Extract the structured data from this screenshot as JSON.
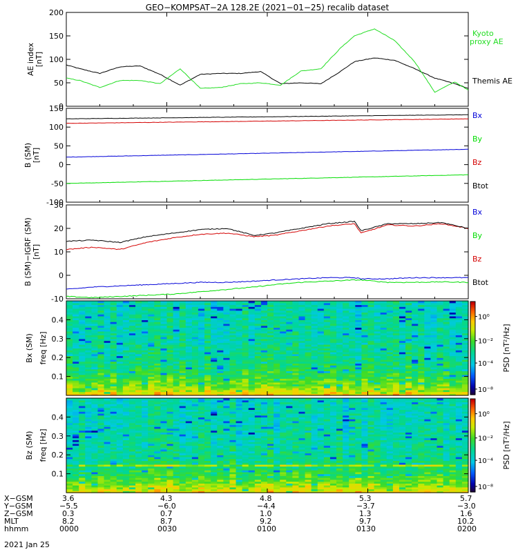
{
  "title": "GEO−KOMPSAT−2A 128.2E (2021−01−25) recalib dataset",
  "colors": {
    "black": "#000000",
    "red": "#d40000",
    "green": "#00dd00",
    "blue": "#0000d8",
    "green_ae": "#22dd22"
  },
  "chart_data": [
    {
      "id": "ae",
      "type": "line",
      "ylabel": "AE index",
      "yunit": "[nT]",
      "ylim": [
        0,
        200
      ],
      "yticks": [
        0,
        50,
        100,
        150,
        200
      ],
      "x_minutes": [
        0,
        4,
        10,
        16,
        22,
        28,
        34,
        40,
        46,
        52,
        58,
        64,
        70,
        76,
        82,
        86,
        92,
        98,
        104,
        110,
        116,
        120
      ],
      "series": [
        {
          "name": "Themis AE",
          "color": "#000000",
          "values": [
            88,
            80,
            70,
            84,
            86,
            68,
            45,
            68,
            70,
            70,
            74,
            48,
            50,
            48,
            75,
            95,
            103,
            98,
            80,
            60,
            48,
            38
          ]
        },
        {
          "name": "Kyoto proxy AE",
          "color": "#22dd22",
          "values": [
            60,
            55,
            40,
            55,
            55,
            48,
            80,
            38,
            40,
            48,
            50,
            45,
            75,
            80,
            125,
            150,
            165,
            140,
            95,
            30,
            52,
            34
          ]
        }
      ],
      "legend": [
        {
          "text": "Kyoto",
          "color": "#22dd22"
        },
        {
          "text": "proxy AE",
          "color": "#22dd22"
        },
        {
          "text": "Themis AE",
          "color": "#000000"
        }
      ]
    },
    {
      "id": "bsm",
      "type": "line",
      "ylabel": "B (SM)",
      "yunit": "[nT]",
      "ylim": [
        -100,
        150
      ],
      "yticks": [
        -100,
        -50,
        0,
        50,
        100,
        150
      ],
      "x_minutes": [
        0,
        120
      ],
      "series": [
        {
          "name": "Bx",
          "color": "#0000d8",
          "values": [
            20,
            41
          ]
        },
        {
          "name": "By",
          "color": "#00dd00",
          "values": [
            -50,
            -27
          ]
        },
        {
          "name": "Bz",
          "color": "#d40000",
          "values": [
            110,
            122
          ]
        },
        {
          "name": "Btot",
          "color": "#000000",
          "values": [
            122,
            133
          ]
        }
      ]
    },
    {
      "id": "bsm_igrf",
      "type": "line",
      "ylabel": "B (SM)−IGRF (SM)",
      "yunit": "[nT]",
      "ylim": [
        -10,
        30
      ],
      "yticks": [
        -10,
        0,
        10,
        20,
        30
      ],
      "x_minutes": [
        0,
        8,
        16,
        24,
        32,
        40,
        48,
        56,
        62,
        70,
        78,
        86,
        88,
        96,
        104,
        112,
        120
      ],
      "series": [
        {
          "name": "Bx",
          "color": "#0000d8",
          "values": [
            -6,
            -5,
            -4.5,
            -4,
            -3.5,
            -3,
            -3,
            -2.5,
            -2,
            -1.5,
            -1,
            -1,
            -1.5,
            -1.5,
            -1,
            -1,
            -1
          ]
        },
        {
          "name": "By",
          "color": "#00dd00",
          "values": [
            -9,
            -9.5,
            -9,
            -8.5,
            -8,
            -7,
            -6,
            -5,
            -4,
            -3,
            -2.5,
            -2,
            -2,
            -3,
            -3,
            -2.8,
            -3
          ]
        },
        {
          "name": "Bz",
          "color": "#d40000",
          "values": [
            11,
            12,
            11,
            14,
            16,
            17.5,
            18,
            16.5,
            17,
            19,
            21,
            22,
            18,
            21.5,
            21,
            22,
            20
          ]
        },
        {
          "name": "Btot",
          "color": "#000000",
          "values": [
            14.5,
            15,
            14,
            16.5,
            18,
            19.5,
            20,
            17,
            18,
            20,
            22,
            23,
            19,
            22,
            22,
            22.5,
            20
          ]
        }
      ]
    },
    {
      "id": "bx_psd",
      "type": "heatmap",
      "ylabel": "Bx (SM)",
      "ylabel2": "freq [Hz]",
      "ylim": [
        0,
        0.5
      ],
      "yticks": [
        0.1,
        0.2,
        0.3,
        0.4
      ],
      "colorbar_label": "PSD [nT²/Hz]",
      "colorbar_ticks": [
        "10⁰",
        "10⁻²",
        "10⁻⁴",
        "10⁻⁸"
      ]
    },
    {
      "id": "bz_psd",
      "type": "heatmap",
      "ylabel": "Bz (SM)",
      "ylabel2": "freq [Hz]",
      "ylim": [
        0,
        0.5
      ],
      "yticks": [
        0.1,
        0.2,
        0.3,
        0.4
      ],
      "colorbar_label": "PSD [nT²/Hz]",
      "colorbar_ticks": [
        "10⁰",
        "10⁻²",
        "10⁻⁴",
        "10⁻⁸"
      ]
    }
  ],
  "orbit": {
    "rows": [
      {
        "label": "X−GSM",
        "values": [
          "3.6",
          "4.3",
          "4.8",
          "5.3",
          "5.7"
        ]
      },
      {
        "label": "Y−GSM",
        "values": [
          "−5.5",
          "−6.0",
          "−4.4",
          "−3.7",
          "−3.0"
        ]
      },
      {
        "label": "Z−GSM",
        "values": [
          "0.3",
          "0.7",
          "1.0",
          "1.3",
          "1.6"
        ]
      },
      {
        "label": "MLT",
        "values": [
          "8.2",
          "8.7",
          "9.2",
          "9.7",
          "10.2"
        ]
      },
      {
        "label": "hhmm",
        "values": [
          "0000",
          "0030",
          "0100",
          "0130",
          "0200"
        ]
      }
    ],
    "date": "2021 Jan 25"
  }
}
